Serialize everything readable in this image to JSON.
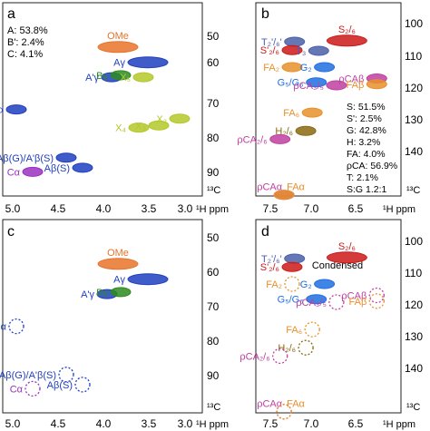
{
  "chart_data": [
    {
      "type": "scatter",
      "panel_label": "a",
      "x_range": [
        5.0,
        2.8
      ],
      "y_range": [
        45,
        93
      ],
      "x_ticks": [
        "5.0",
        "4.5",
        "4.0",
        "3.5",
        "3.0"
      ],
      "y_ticks": [
        "50",
        "60",
        "70",
        "80",
        "90"
      ],
      "x_unit": "¹H ppm",
      "y_unit": "¹³C",
      "stats": [
        "A: 53.8%",
        "B': 2.4%",
        "C: 4.1%"
      ],
      "peaks": [
        {
          "label": "OMe",
          "x": 3.73,
          "y": 56.0,
          "color": "#e8732a"
        },
        {
          "label": "A'γ",
          "x": 3.8,
          "y": 63.5,
          "color": "#1f3fbf"
        },
        {
          "label": "Aγ",
          "x": 3.4,
          "y": 59.8,
          "color": "#1f3fbf"
        },
        {
          "label": "Bγ",
          "x": 3.7,
          "y": 63.0,
          "color": "#2e8b20"
        },
        {
          "label": "Aα/A'α",
          "x": 4.85,
          "y": 71.5,
          "color": "#1f3fbf"
        },
        {
          "label": "Aβ(G)/A'β(S)",
          "x": 4.3,
          "y": 83.5,
          "color": "#1f3fbf"
        },
        {
          "label": "Aβ(S)",
          "x": 4.12,
          "y": 86.0,
          "color": "#1f3fbf"
        },
        {
          "label": "Cα",
          "x": 4.67,
          "y": 87.0,
          "color": "#9a30c0"
        },
        {
          "label": "X₅",
          "x": 3.45,
          "y": 63.5,
          "color": "#b4c82a"
        },
        {
          "label": "X₂",
          "x": 3.05,
          "y": 73.8,
          "color": "#b4c82a"
        },
        {
          "label": "X₃",
          "x": 3.28,
          "y": 75.5,
          "color": "#b4c82a"
        },
        {
          "label": "X₄",
          "x": 3.5,
          "y": 76.0,
          "color": "#b4c82a"
        }
      ]
    },
    {
      "type": "scatter",
      "panel_label": "b",
      "x_range": [
        7.8,
        6.0
      ],
      "y_range": [
        94,
        145
      ],
      "x_ticks": [
        "7.5",
        "7.0",
        "6.5"
      ],
      "y_ticks": [
        "100",
        "110",
        "120",
        "130",
        "140"
      ],
      "x_unit": "¹H ppm",
      "y_unit": "¹³C",
      "stats": [
        "S: 51.5%",
        "S': 2.5%",
        "G: 42.8%",
        "H: 3.2%",
        "FA: 4.0%",
        "ρCA: 56.9%",
        "T: 2.1%",
        "S:G 1.2:1"
      ],
      "peaks": [
        {
          "label": "S₂/₆",
          "x": 6.67,
          "y": 104.0,
          "color": "#cc1a1a"
        },
        {
          "label": "T₂'/₆'",
          "x": 7.32,
          "y": 104.3,
          "color": "#4b5fa8"
        },
        {
          "label": "S'₂/₆",
          "x": 7.35,
          "y": 106.5,
          "color": "#cc1a1a"
        },
        {
          "label": "T₃",
          "x": 7.02,
          "y": 106.7,
          "color": "#4b5fa8"
        },
        {
          "label": "FA₂",
          "x": 7.35,
          "y": 111.0,
          "color": "#e8902a"
        },
        {
          "label": "G₂",
          "x": 6.95,
          "y": 111.0,
          "color": "#1f6fe0"
        },
        {
          "label": "ρCAβ",
          "x": 6.3,
          "y": 114.0,
          "color": "#c040a0"
        },
        {
          "label": "FAβ",
          "x": 6.3,
          "y": 115.5,
          "color": "#e8902a"
        },
        {
          "label": "G₅/G₆",
          "x": 7.05,
          "y": 115.0,
          "color": "#1f6fe0"
        },
        {
          "label": "ρCA₃/₅",
          "x": 6.8,
          "y": 115.8,
          "color": "#c040a0"
        },
        {
          "label": "FA₆",
          "x": 7.1,
          "y": 123.0,
          "color": "#e8902a"
        },
        {
          "label": "H₂/₆",
          "x": 7.18,
          "y": 127.8,
          "color": "#8a6a10"
        },
        {
          "label": "ρCA₂/₆",
          "x": 7.5,
          "y": 130.0,
          "color": "#c040a0"
        },
        {
          "label": "ρCAα",
          "x": 7.45,
          "y": 144.7,
          "color": "#c040a0"
        },
        {
          "label": "FAα",
          "x": 7.45,
          "y": 144.7,
          "color": "#e8902a"
        }
      ]
    },
    {
      "type": "scatter",
      "panel_label": "c",
      "x_range": [
        5.0,
        2.8
      ],
      "y_range": [
        45,
        93
      ],
      "x_ticks": [
        "5.0",
        "4.5",
        "4.0",
        "3.5",
        "3.0"
      ],
      "y_ticks": [
        "50",
        "60",
        "70",
        "80",
        "90"
      ],
      "x_unit": "¹H ppm",
      "y_unit": "¹³C",
      "peaks": [
        {
          "label": "OMe",
          "x": 3.73,
          "y": 56.0,
          "color": "#e8732a"
        },
        {
          "label": "A'γ",
          "x": 3.85,
          "y": 63.5,
          "color": "#1f3fbf"
        },
        {
          "label": "Aγ",
          "x": 3.4,
          "y": 59.8,
          "color": "#1f3fbf"
        },
        {
          "label": "Bγ",
          "x": 3.7,
          "y": 63.0,
          "color": "#2e8b20"
        },
        {
          "label": "Aα/A'α",
          "x": 4.85,
          "y": 71.5,
          "color": "#1f3fbf"
        },
        {
          "label": "Aβ(G)/A'β(S)",
          "x": 4.3,
          "y": 83.5,
          "color": "#1f3fbf"
        },
        {
          "label": "Aβ(S)",
          "x": 4.12,
          "y": 86.0,
          "color": "#1f3fbf"
        },
        {
          "label": "Cα",
          "x": 4.67,
          "y": 87.0,
          "color": "#9a30c0"
        }
      ]
    },
    {
      "type": "scatter",
      "panel_label": "d",
      "x_range": [
        7.8,
        6.0
      ],
      "y_range": [
        94,
        145
      ],
      "x_ticks": [
        "7.5",
        "7.0",
        "6.5"
      ],
      "y_ticks": [
        "100",
        "110",
        "120",
        "130",
        "140"
      ],
      "x_unit": "¹H ppm",
      "y_unit": "¹³C",
      "annotation": "Condensed",
      "peaks": [
        {
          "label": "S₂/₆",
          "x": 6.67,
          "y": 104.0,
          "color": "#cc1a1a"
        },
        {
          "label": "T₂'/₆'",
          "x": 7.32,
          "y": 104.3,
          "color": "#4b5fa8"
        },
        {
          "label": "S'₂/₆",
          "x": 7.35,
          "y": 106.5,
          "color": "#cc1a1a"
        },
        {
          "label": "FA₂",
          "x": 7.35,
          "y": 111.0,
          "color": "#e8902a"
        },
        {
          "label": "G₂",
          "x": 6.95,
          "y": 111.0,
          "color": "#1f6fe0"
        },
        {
          "label": "ρCAβ",
          "x": 6.3,
          "y": 114.0,
          "color": "#c040a0"
        },
        {
          "label": "FAβ",
          "x": 6.3,
          "y": 115.5,
          "color": "#e8902a"
        },
        {
          "label": "G₅/G₆",
          "x": 7.05,
          "y": 115.0,
          "color": "#1f6fe0"
        },
        {
          "label": "ρCA₃/₅",
          "x": 6.8,
          "y": 115.8,
          "color": "#c040a0"
        },
        {
          "label": "FA₆",
          "x": 7.1,
          "y": 123.0,
          "color": "#e8902a"
        },
        {
          "label": "H₂/₆",
          "x": 7.18,
          "y": 127.8,
          "color": "#8a6a10"
        },
        {
          "label": "ρCA₂/₆",
          "x": 7.5,
          "y": 130.0,
          "color": "#c040a0"
        },
        {
          "label": "ρCAα",
          "x": 7.45,
          "y": 144.7,
          "color": "#c040a0"
        },
        {
          "label": "FAα",
          "x": 7.45,
          "y": 144.7,
          "color": "#e8902a"
        }
      ]
    }
  ]
}
